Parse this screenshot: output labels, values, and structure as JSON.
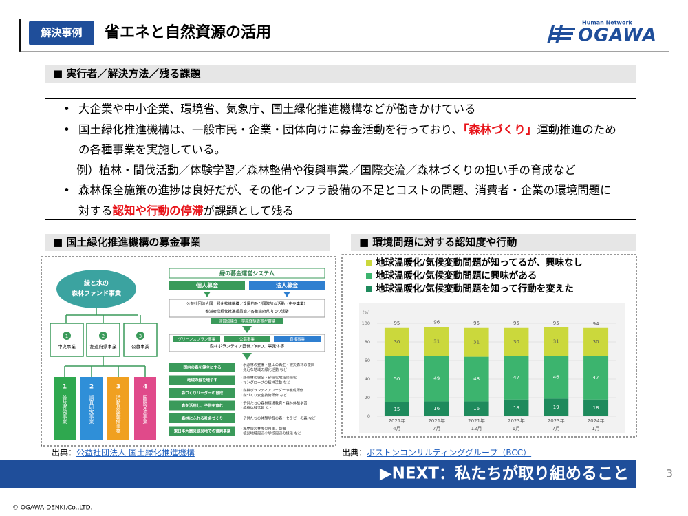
{
  "header": {
    "label": "解決事例",
    "title": "省エネと自然資源の活用",
    "logo": {
      "tagline": "Human Network",
      "name": "OGAWA"
    }
  },
  "section_issues": {
    "heading": "■ 実行者／解決方法／残る課題",
    "items": [
      {
        "runs": [
          {
            "text": "大企業や中小企業、環境省、気象庁、国土緑化推進機構などが働きかけている"
          }
        ]
      },
      {
        "runs": [
          {
            "text": "国土緑化推進機構は、一般市民・企業・団体向けに募金活動を行っており、"
          },
          {
            "text": "「森林づくり」",
            "emphasis": true
          },
          {
            "text": "運動推進のための各種事業を実施している。"
          }
        ]
      },
      {
        "note": "例）植林・間伐活動／体験学習／森林整備や復興事業／国際交流／森林づくりの担い手の育成など"
      },
      {
        "runs": [
          {
            "text": "森林保全施策の進捗は良好だが、その他インフラ設備の不足とコストの問題、消費者・企業の環境問題に対する"
          },
          {
            "text": "認知や行動の停滞",
            "emphasis": true
          },
          {
            "text": "が課題として残る"
          }
        ]
      }
    ]
  },
  "section_fund": {
    "heading": "■ 国土緑化推進機構の募金事業",
    "diagram": {
      "fund": [
        "緑と水の",
        "森林ファンド事業"
      ],
      "branches": [
        {
          "number": "1",
          "label": "中央事業"
        },
        {
          "number": "2",
          "label": "都道府県事業"
        },
        {
          "number": "3",
          "label": "公募事業"
        }
      ],
      "programs": [
        {
          "number": "1",
          "label": "普及啓発事業",
          "color": "#2fa84f"
        },
        {
          "number": "2",
          "label": "調査研究事業",
          "color": "#2f8fd8"
        },
        {
          "number": "3",
          "label": "活動基盤整備事業",
          "color": "#f0a020"
        },
        {
          "number": "4",
          "label": "国際交流事業",
          "color": "#e04a8a"
        }
      ],
      "system": {
        "title": "緑の募金運営システム",
        "donors": [
          "個人募金",
          "法人募金"
        ],
        "organizers": [
          "公益社団法人国土緑化推進機構／全国的及び国際的な活動（中央事業）",
          "都道府県緑化推進委員会／各都道府県内での活動"
        ],
        "council": "運営協議会・学識経験者等が審議",
        "routes": [
          "グリーンスプラン事業",
          "公募事業",
          "直接事業"
        ],
        "recipients": "森林ボランティア団体／NPO、事業体等",
        "uses": [
          {
            "label": "国内の森を健全にする",
            "details": [
              "・水源林の整備・里山の再生・被災森林の復旧",
              "・身近な地域の緑化活動 など"
            ]
          },
          {
            "label": "地球の緑を増やす",
            "details": [
              "・熱帯林の保全・砂漠化地域の緑化",
              "・マングローブの植林活動 など"
            ]
          },
          {
            "label": "森づくりリーダーの育成",
            "details": [
              "・森林ボランティアリーダーの養成研修",
              "・森づくり安全技術研修 など"
            ]
          },
          {
            "label": "森を活用し、子供を育む",
            "details": [
              "・子供たちの森林環境教育・森林体験学習",
              "・植樹体験活動 など"
            ]
          },
          {
            "label": "森林にふれる社会づくり",
            "details": [
              "・子供たちの体験学習の森・セラピーの森 など"
            ]
          },
          {
            "label": "東日本大震災被災地での復興事業",
            "details": [
              "・海岸防災林等の再生、整備",
              "・被災地域周辺小学校周辺の緑化 など"
            ]
          }
        ]
      }
    },
    "source": {
      "prefix": "出典：",
      "link": "公益社団法人 国土緑化推進機構"
    }
  },
  "section_awareness": {
    "heading": "■ 環境問題に対する認知度や行動",
    "source": {
      "prefix": "出典：",
      "link": "ボストンコンサルティンググループ（BCC）"
    }
  },
  "chart_data": {
    "type": "bar",
    "stacked": true,
    "ylabel": "(%)",
    "categories": [
      [
        "2021年",
        "4月"
      ],
      [
        "2021年",
        "7月"
      ],
      [
        "2021年",
        "12月"
      ],
      [
        "2023年",
        "1月"
      ],
      [
        "2023年",
        "7月"
      ],
      [
        "2024年",
        "1月"
      ]
    ],
    "series": [
      {
        "name": "地球温暖化/気候変動問題が知ってるが、興味なし",
        "color": "#cbd83c",
        "label_color": "#555555",
        "values": [
          30,
          31,
          31,
          30,
          31,
          30
        ]
      },
      {
        "name": "地球温暖化/気候変動問題に興味がある",
        "color": "#3cb46e",
        "label_color": "#ffffff",
        "values": [
          50,
          49,
          48,
          47,
          46,
          47
        ]
      },
      {
        "name": "地球温暖化/気候変動問題を知って行動を変えた",
        "color": "#1e8a5c",
        "label_color": "#ffffff",
        "values": [
          15,
          16,
          16,
          18,
          19,
          18
        ]
      }
    ],
    "totals": [
      95,
      96,
      95,
      95,
      95,
      94
    ],
    "ylim": [
      0,
      100
    ],
    "yticks": [
      0,
      20,
      40,
      60,
      80,
      100
    ],
    "grid": true,
    "legend": "top"
  },
  "next": "▶NEXT：私たちが取り組めること",
  "page_number": "3",
  "footer": "© OGAWA-DENKI.Co.,LTD."
}
